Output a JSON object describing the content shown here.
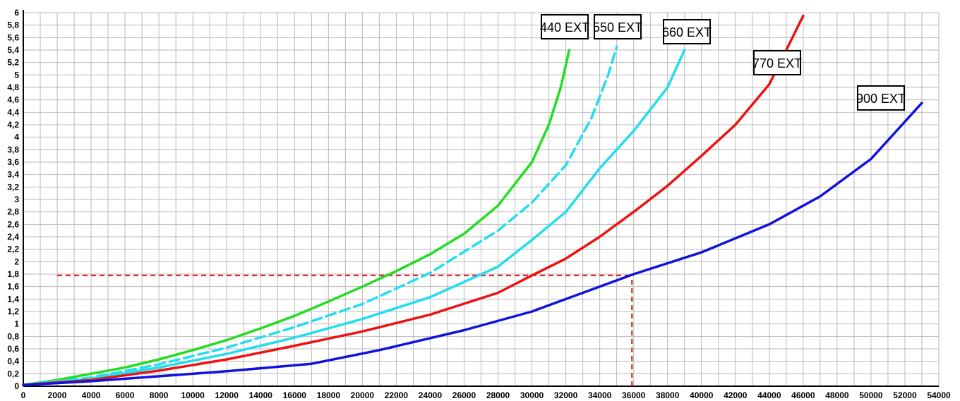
{
  "chart_data": {
    "type": "line",
    "title": "",
    "xlabel": "",
    "ylabel": "",
    "xlim": [
      0,
      54000
    ],
    "ylim": [
      0,
      6
    ],
    "grid": true,
    "x_ticks": [
      "0",
      "2000",
      "4000",
      "6000",
      "8000",
      "10000",
      "12000",
      "14000",
      "16000",
      "18000",
      "20000",
      "22000",
      "24000",
      "26000",
      "28000",
      "30000",
      "32000",
      "34000",
      "36000",
      "38000",
      "40000",
      "42000",
      "44000",
      "46000",
      "48000",
      "50000",
      "52000",
      "54000"
    ],
    "y_ticks": [
      "0",
      "0,2",
      "0,4",
      "0,6",
      "0,8",
      "1",
      "1,2",
      "1,4",
      "1,6",
      "1,8",
      "2",
      "2,2",
      "2,4",
      "2,6",
      "2,8",
      "3",
      "3,2",
      "3,4",
      "3,6",
      "3,8",
      "4",
      "4,2",
      "4,4",
      "4,6",
      "4,8",
      "5",
      "5,2",
      "5,4",
      "5,6",
      "5,8",
      "6"
    ],
    "series": [
      {
        "name": "440 EXT",
        "color": "#22dd22",
        "dashed": false,
        "points": [
          [
            0,
            0.02
          ],
          [
            2000,
            0.1
          ],
          [
            4000,
            0.2
          ],
          [
            6000,
            0.3
          ],
          [
            8000,
            0.43
          ],
          [
            10000,
            0.58
          ],
          [
            12000,
            0.74
          ],
          [
            14000,
            0.93
          ],
          [
            16000,
            1.13
          ],
          [
            18000,
            1.36
          ],
          [
            20000,
            1.6
          ],
          [
            22000,
            1.85
          ],
          [
            24000,
            2.12
          ],
          [
            26000,
            2.45
          ],
          [
            28000,
            2.9
          ],
          [
            30000,
            3.6
          ],
          [
            31000,
            4.2
          ],
          [
            31700,
            4.8
          ],
          [
            32200,
            5.4
          ]
        ]
      },
      {
        "name": "550 EXT",
        "color": "#22ddee",
        "dashed": true,
        "points": [
          [
            0,
            0.02
          ],
          [
            4000,
            0.14
          ],
          [
            8000,
            0.35
          ],
          [
            12000,
            0.62
          ],
          [
            16000,
            0.95
          ],
          [
            20000,
            1.32
          ],
          [
            24000,
            1.82
          ],
          [
            28000,
            2.5
          ],
          [
            30000,
            2.95
          ],
          [
            32000,
            3.55
          ],
          [
            33500,
            4.3
          ],
          [
            34500,
            5.0
          ],
          [
            35000,
            5.45
          ]
        ]
      },
      {
        "name": "660 EXT",
        "color": "#22ddee",
        "dashed": false,
        "points": [
          [
            0,
            0.02
          ],
          [
            4000,
            0.12
          ],
          [
            8000,
            0.3
          ],
          [
            12000,
            0.52
          ],
          [
            16000,
            0.78
          ],
          [
            20000,
            1.08
          ],
          [
            24000,
            1.43
          ],
          [
            28000,
            1.92
          ],
          [
            30000,
            2.35
          ],
          [
            32000,
            2.8
          ],
          [
            34000,
            3.5
          ],
          [
            36000,
            4.1
          ],
          [
            38000,
            4.8
          ],
          [
            39000,
            5.4
          ]
        ]
      },
      {
        "name": "770 EXT",
        "color": "#ee1111",
        "dashed": false,
        "points": [
          [
            0,
            0.02
          ],
          [
            4000,
            0.1
          ],
          [
            8000,
            0.25
          ],
          [
            12000,
            0.43
          ],
          [
            16000,
            0.65
          ],
          [
            20000,
            0.88
          ],
          [
            24000,
            1.15
          ],
          [
            28000,
            1.5
          ],
          [
            30000,
            1.78
          ],
          [
            32000,
            2.05
          ],
          [
            34000,
            2.4
          ],
          [
            36000,
            2.8
          ],
          [
            38000,
            3.22
          ],
          [
            40000,
            3.7
          ],
          [
            42000,
            4.2
          ],
          [
            44000,
            4.85
          ],
          [
            46000,
            5.95
          ]
        ]
      },
      {
        "name": "900 EXT",
        "color": "#1111dd",
        "dashed": false,
        "points": [
          [
            0,
            0.02
          ],
          [
            4000,
            0.08
          ],
          [
            8000,
            0.16
          ],
          [
            12000,
            0.24
          ],
          [
            17000,
            0.36
          ],
          [
            21000,
            0.58
          ],
          [
            26000,
            0.9
          ],
          [
            30000,
            1.2
          ],
          [
            33000,
            1.5
          ],
          [
            36000,
            1.8
          ],
          [
            40000,
            2.15
          ],
          [
            44000,
            2.6
          ],
          [
            47000,
            3.05
          ],
          [
            50000,
            3.65
          ],
          [
            53000,
            4.55
          ]
        ]
      }
    ],
    "reference_lines": [
      {
        "type": "horizontal",
        "y": 1.78,
        "x_from": 2000,
        "x_to": 35900,
        "color": "#dd1111"
      },
      {
        "type": "vertical",
        "x": 35900,
        "y_from": 0,
        "y_to": 1.78,
        "color": "#dd1111"
      }
    ],
    "annotations": [
      {
        "text": "440 EXT",
        "anchor_series": "440 EXT"
      },
      {
        "text": "550 EXT",
        "anchor_series": "550 EXT"
      },
      {
        "text": "660 EXT",
        "anchor_series": "660 EXT"
      },
      {
        "text": "770 EXT",
        "anchor_series": "770 EXT"
      },
      {
        "text": "900 EXT",
        "anchor_series": "900 EXT"
      }
    ]
  }
}
